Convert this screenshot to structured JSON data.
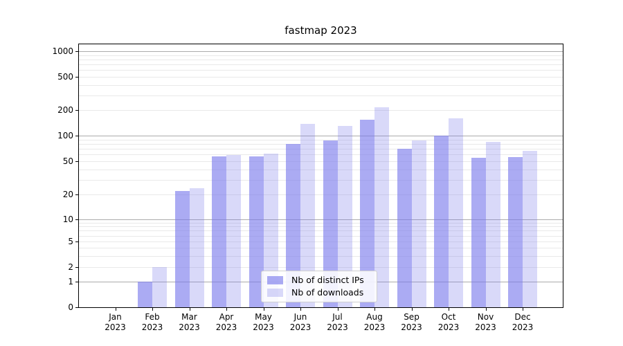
{
  "chart_data": {
    "type": "bar",
    "title": "fastmap 2023",
    "categories": [
      "Jan 2023",
      "Feb 2023",
      "Mar 2023",
      "Apr 2023",
      "May 2023",
      "Jun 2023",
      "Jul 2023",
      "Aug 2023",
      "Sep 2023",
      "Oct 2023",
      "Nov 2023",
      "Dec 2023"
    ],
    "series": [
      {
        "name": "Nb of distinct IPs",
        "color": "rgba(120,120,235,0.62)",
        "values": [
          0,
          1,
          22,
          57,
          57,
          80,
          88,
          155,
          70,
          100,
          55,
          56
        ]
      },
      {
        "name": "Nb of downloads",
        "color": "rgba(120,120,235,0.28)",
        "values": [
          0,
          2,
          24,
          59,
          61,
          137,
          130,
          215,
          88,
          160,
          84,
          66
        ]
      }
    ],
    "yscale": "symlog",
    "yticks": [
      0,
      1,
      2,
      5,
      10,
      20,
      50,
      100,
      200,
      500,
      1000
    ],
    "ylim": [
      0,
      1200
    ],
    "xlabel": "",
    "ylabel": "",
    "grid": true,
    "legend_position": "lower center"
  },
  "colors": {
    "major_grid": "#ababab",
    "minor_grid": "#e9e9e9",
    "axis": "#000000"
  }
}
